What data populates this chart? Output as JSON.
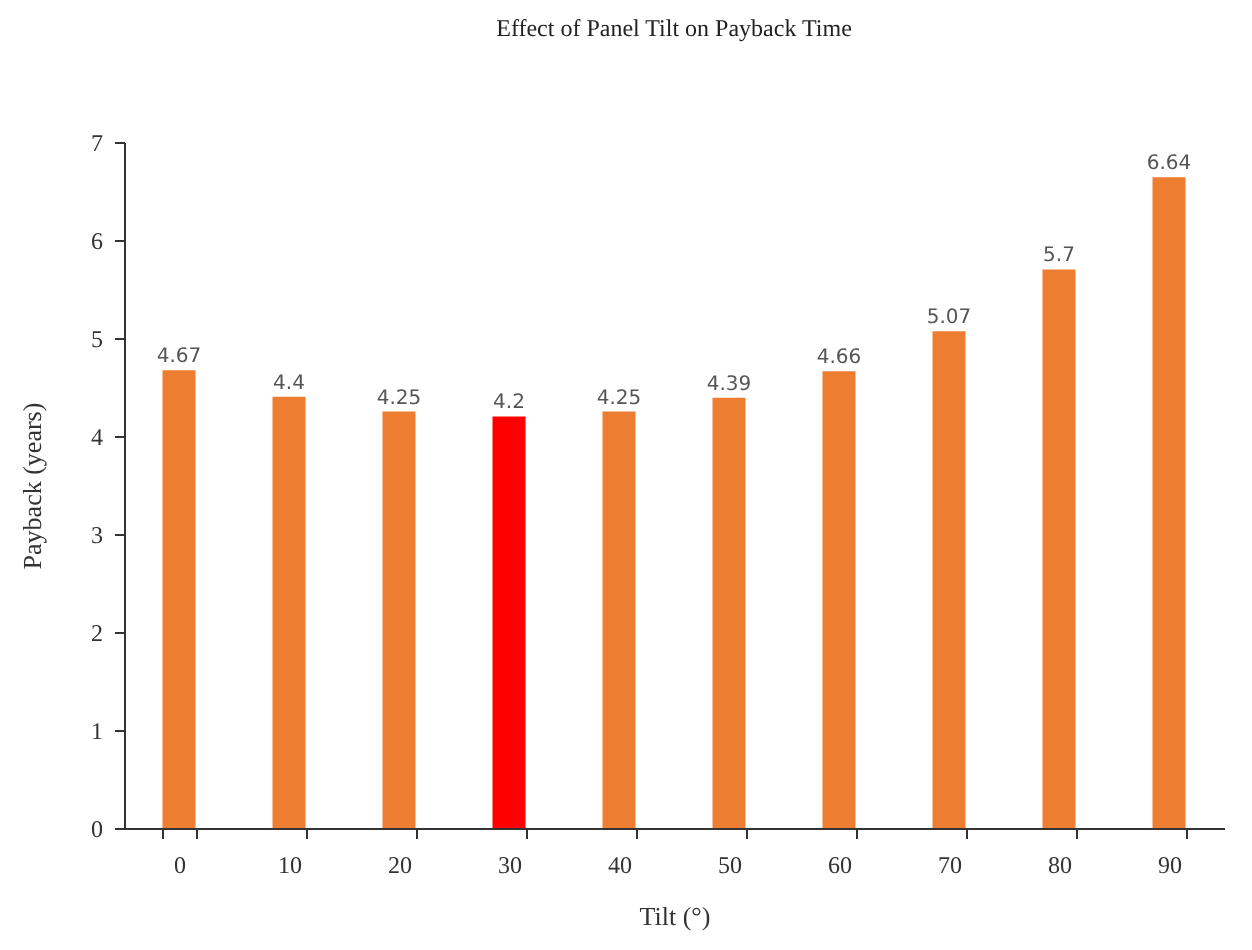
{
  "chart_data": {
    "type": "bar",
    "title": "Effect of Panel Tilt  on Payback Time",
    "xlabel": "Tilt (°)",
    "ylabel": "Payback (years)",
    "categories": [
      "0",
      "10",
      "20",
      "30",
      "40",
      "50",
      "60",
      "70",
      "80",
      "90"
    ],
    "values": [
      4.67,
      4.4,
      4.25,
      4.2,
      4.25,
      4.39,
      4.66,
      5.07,
      5.7,
      6.64
    ],
    "colors": [
      "#ed7d31",
      "#ed7d31",
      "#ed7d31",
      "#ff0000",
      "#ed7d31",
      "#ed7d31",
      "#ed7d31",
      "#ed7d31",
      "#ed7d31",
      "#ed7d31"
    ],
    "ylim": [
      0,
      7
    ],
    "yticks": [
      0,
      1,
      2,
      3,
      4,
      5,
      6,
      7
    ],
    "grid": false,
    "data_labels": true
  }
}
